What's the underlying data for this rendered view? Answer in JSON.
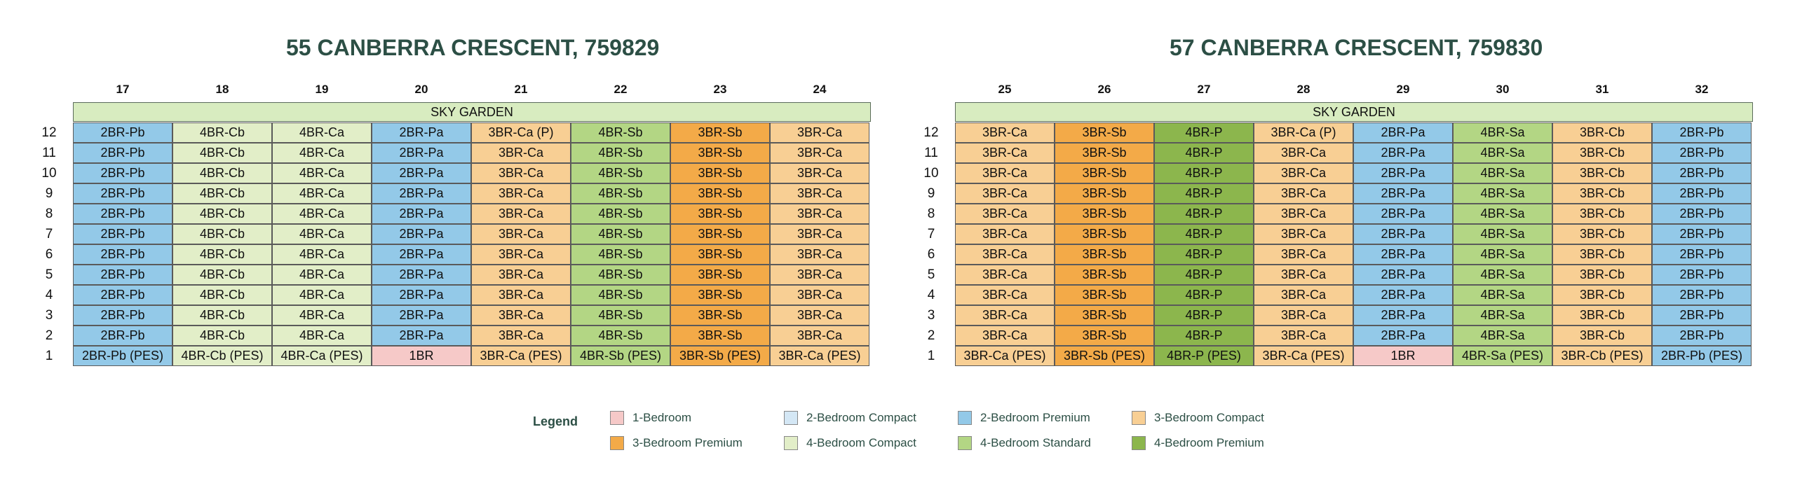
{
  "colors": {
    "1-Bedroom": "#f6c9c8",
    "2-Bedroom Compact": "#d4e7f5",
    "2-Bedroom Premium": "#93c9e8",
    "3-Bedroom Compact": "#f8cf94",
    "3-Bedroom Premium": "#f3aa48",
    "4-Bedroom Compact": "#e2eec8",
    "4-Bedroom Standard": "#b3d684",
    "4-Bedroom Premium": "#8cb64d"
  },
  "blocks": [
    {
      "title": "55 CANBERRA CRESCENT, 759829",
      "sky_garden": "SKY GARDEN",
      "columns": [
        "17",
        "18",
        "19",
        "20",
        "21",
        "22",
        "23",
        "24"
      ],
      "column_types": [
        "2-Bedroom Premium",
        "4-Bedroom Compact",
        "4-Bedroom Compact",
        "2-Bedroom Premium",
        "3-Bedroom Compact",
        "4-Bedroom Standard",
        "3-Bedroom Premium",
        "3-Bedroom Compact"
      ],
      "rows": [
        {
          "floor": "12",
          "units": [
            "2BR-Pb",
            "4BR-Cb",
            "4BR-Ca",
            "2BR-Pa",
            "3BR-Ca (P)",
            "4BR-Sb",
            "3BR-Sb",
            "3BR-Ca"
          ]
        },
        {
          "floor": "11",
          "units": [
            "2BR-Pb",
            "4BR-Cb",
            "4BR-Ca",
            "2BR-Pa",
            "3BR-Ca",
            "4BR-Sb",
            "3BR-Sb",
            "3BR-Ca"
          ]
        },
        {
          "floor": "10",
          "units": [
            "2BR-Pb",
            "4BR-Cb",
            "4BR-Ca",
            "2BR-Pa",
            "3BR-Ca",
            "4BR-Sb",
            "3BR-Sb",
            "3BR-Ca"
          ]
        },
        {
          "floor": "9",
          "units": [
            "2BR-Pb",
            "4BR-Cb",
            "4BR-Ca",
            "2BR-Pa",
            "3BR-Ca",
            "4BR-Sb",
            "3BR-Sb",
            "3BR-Ca"
          ]
        },
        {
          "floor": "8",
          "units": [
            "2BR-Pb",
            "4BR-Cb",
            "4BR-Ca",
            "2BR-Pa",
            "3BR-Ca",
            "4BR-Sb",
            "3BR-Sb",
            "3BR-Ca"
          ]
        },
        {
          "floor": "7",
          "units": [
            "2BR-Pb",
            "4BR-Cb",
            "4BR-Ca",
            "2BR-Pa",
            "3BR-Ca",
            "4BR-Sb",
            "3BR-Sb",
            "3BR-Ca"
          ]
        },
        {
          "floor": "6",
          "units": [
            "2BR-Pb",
            "4BR-Cb",
            "4BR-Ca",
            "2BR-Pa",
            "3BR-Ca",
            "4BR-Sb",
            "3BR-Sb",
            "3BR-Ca"
          ]
        },
        {
          "floor": "5",
          "units": [
            "2BR-Pb",
            "4BR-Cb",
            "4BR-Ca",
            "2BR-Pa",
            "3BR-Ca",
            "4BR-Sb",
            "3BR-Sb",
            "3BR-Ca"
          ]
        },
        {
          "floor": "4",
          "units": [
            "2BR-Pb",
            "4BR-Cb",
            "4BR-Ca",
            "2BR-Pa",
            "3BR-Ca",
            "4BR-Sb",
            "3BR-Sb",
            "3BR-Ca"
          ]
        },
        {
          "floor": "3",
          "units": [
            "2BR-Pb",
            "4BR-Cb",
            "4BR-Ca",
            "2BR-Pa",
            "3BR-Ca",
            "4BR-Sb",
            "3BR-Sb",
            "3BR-Ca"
          ]
        },
        {
          "floor": "2",
          "units": [
            "2BR-Pb",
            "4BR-Cb",
            "4BR-Ca",
            "2BR-Pa",
            "3BR-Ca",
            "4BR-Sb",
            "3BR-Sb",
            "3BR-Ca"
          ]
        },
        {
          "floor": "1",
          "units": [
            "2BR-Pb (PES)",
            "4BR-Cb (PES)",
            "4BR-Ca (PES)",
            "1BR",
            "3BR-Ca (PES)",
            "4BR-Sb (PES)",
            "3BR-Sb (PES)",
            "3BR-Ca (PES)"
          ]
        }
      ]
    },
    {
      "title": "57 CANBERRA CRESCENT, 759830",
      "sky_garden": "SKY GARDEN",
      "columns": [
        "25",
        "26",
        "27",
        "28",
        "29",
        "30",
        "31",
        "32"
      ],
      "column_types": [
        "3-Bedroom Compact",
        "3-Bedroom Premium",
        "4-Bedroom Premium",
        "3-Bedroom Compact",
        "2-Bedroom Premium",
        "4-Bedroom Standard",
        "3-Bedroom Compact",
        "2-Bedroom Premium"
      ],
      "rows": [
        {
          "floor": "12",
          "units": [
            "3BR-Ca",
            "3BR-Sb",
            "4BR-P",
            "3BR-Ca (P)",
            "2BR-Pa",
            "4BR-Sa",
            "3BR-Cb",
            "2BR-Pb"
          ]
        },
        {
          "floor": "11",
          "units": [
            "3BR-Ca",
            "3BR-Sb",
            "4BR-P",
            "3BR-Ca",
            "2BR-Pa",
            "4BR-Sa",
            "3BR-Cb",
            "2BR-Pb"
          ]
        },
        {
          "floor": "10",
          "units": [
            "3BR-Ca",
            "3BR-Sb",
            "4BR-P",
            "3BR-Ca",
            "2BR-Pa",
            "4BR-Sa",
            "3BR-Cb",
            "2BR-Pb"
          ]
        },
        {
          "floor": "9",
          "units": [
            "3BR-Ca",
            "3BR-Sb",
            "4BR-P",
            "3BR-Ca",
            "2BR-Pa",
            "4BR-Sa",
            "3BR-Cb",
            "2BR-Pb"
          ]
        },
        {
          "floor": "8",
          "units": [
            "3BR-Ca",
            "3BR-Sb",
            "4BR-P",
            "3BR-Ca",
            "2BR-Pa",
            "4BR-Sa",
            "3BR-Cb",
            "2BR-Pb"
          ]
        },
        {
          "floor": "7",
          "units": [
            "3BR-Ca",
            "3BR-Sb",
            "4BR-P",
            "3BR-Ca",
            "2BR-Pa",
            "4BR-Sa",
            "3BR-Cb",
            "2BR-Pb"
          ]
        },
        {
          "floor": "6",
          "units": [
            "3BR-Ca",
            "3BR-Sb",
            "4BR-P",
            "3BR-Ca",
            "2BR-Pa",
            "4BR-Sa",
            "3BR-Cb",
            "2BR-Pb"
          ]
        },
        {
          "floor": "5",
          "units": [
            "3BR-Ca",
            "3BR-Sb",
            "4BR-P",
            "3BR-Ca",
            "2BR-Pa",
            "4BR-Sa",
            "3BR-Cb",
            "2BR-Pb"
          ]
        },
        {
          "floor": "4",
          "units": [
            "3BR-Ca",
            "3BR-Sb",
            "4BR-P",
            "3BR-Ca",
            "2BR-Pa",
            "4BR-Sa",
            "3BR-Cb",
            "2BR-Pb"
          ]
        },
        {
          "floor": "3",
          "units": [
            "3BR-Ca",
            "3BR-Sb",
            "4BR-P",
            "3BR-Ca",
            "2BR-Pa",
            "4BR-Sa",
            "3BR-Cb",
            "2BR-Pb"
          ]
        },
        {
          "floor": "2",
          "units": [
            "3BR-Ca",
            "3BR-Sb",
            "4BR-P",
            "3BR-Ca",
            "2BR-Pa",
            "4BR-Sa",
            "3BR-Cb",
            "2BR-Pb"
          ]
        },
        {
          "floor": "1",
          "units": [
            "3BR-Ca (PES)",
            "3BR-Sb (PES)",
            "4BR-P (PES)",
            "3BR-Ca (PES)",
            "1BR",
            "4BR-Sa (PES)",
            "3BR-Cb (PES)",
            "2BR-Pb (PES)"
          ]
        }
      ]
    }
  ],
  "floor_1_overrides": {
    "1BR": "1-Bedroom"
  },
  "legend": {
    "title": "Legend",
    "items": [
      "1-Bedroom",
      "2-Bedroom Compact",
      "2-Bedroom Premium",
      "3-Bedroom Compact",
      "3-Bedroom Premium",
      "4-Bedroom Compact",
      "4-Bedroom Standard",
      "4-Bedroom Premium"
    ]
  }
}
